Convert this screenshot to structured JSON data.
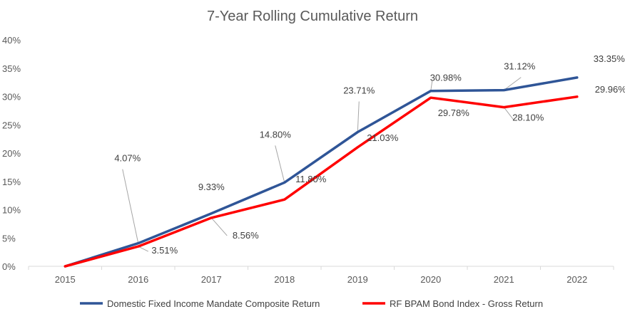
{
  "chart_data": {
    "type": "line",
    "title": "7-Year Rolling Cumulative Return",
    "xlabel": "",
    "ylabel": "",
    "categories": [
      "2015",
      "2016",
      "2017",
      "2018",
      "2019",
      "2020",
      "2021",
      "2022"
    ],
    "ylim": [
      0,
      40
    ],
    "yticks": [
      "0%",
      "5%",
      "10%",
      "15%",
      "20%",
      "25%",
      "30%",
      "35%",
      "40%"
    ],
    "grid": false,
    "legend_position": "bottom",
    "series": [
      {
        "name": "Domestic Fixed Income Mandate Composite Return",
        "color": "#2F5597",
        "values": [
          0,
          4.07,
          9.33,
          14.8,
          23.71,
          30.98,
          31.12,
          33.35
        ],
        "labels": [
          "",
          "4.07%",
          "9.33%",
          "14.80%",
          "23.71%",
          "30.98%",
          "31.12%",
          "33.35%"
        ]
      },
      {
        "name": "RF BPAM Bond Index - Gross Return",
        "color": "#FF0000",
        "values": [
          0,
          3.51,
          8.56,
          11.8,
          21.03,
          29.78,
          28.1,
          29.96
        ],
        "labels": [
          "",
          "3.51%",
          "8.56%",
          "11.80%",
          "21.03%",
          "29.78%",
          "28.10%",
          "29.96%"
        ]
      }
    ]
  }
}
